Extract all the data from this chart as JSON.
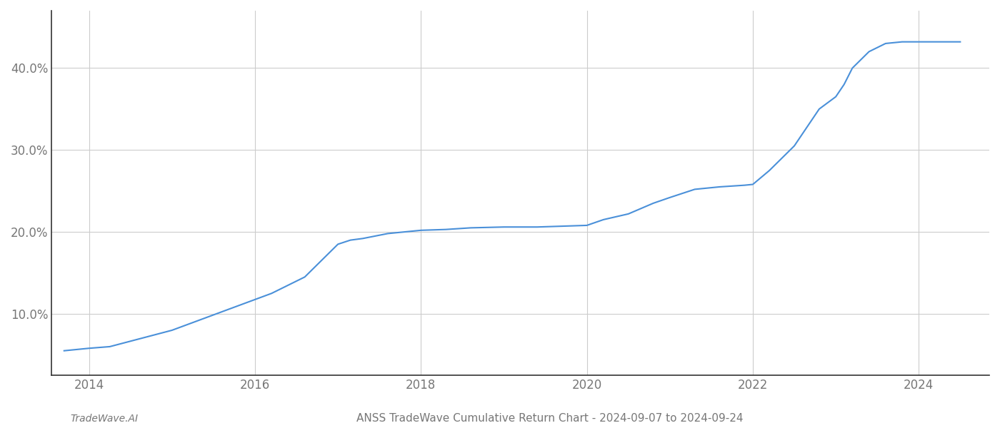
{
  "title": "ANSS TradeWave Cumulative Return Chart - 2024-09-07 to 2024-09-24",
  "watermark": "TradeWave.AI",
  "line_color": "#4a90d9",
  "background_color": "#ffffff",
  "grid_color": "#cccccc",
  "x_years": [
    2013.7,
    2014.0,
    2014.25,
    2014.7,
    2015.0,
    2015.4,
    2015.8,
    2016.2,
    2016.6,
    2016.9,
    2017.0,
    2017.15,
    2017.3,
    2017.6,
    2018.0,
    2018.3,
    2018.6,
    2019.0,
    2019.4,
    2019.7,
    2020.0,
    2020.2,
    2020.5,
    2020.8,
    2021.0,
    2021.15,
    2021.3,
    2021.6,
    2021.9,
    2022.0,
    2022.2,
    2022.5,
    2022.8,
    2023.0,
    2023.1,
    2023.2,
    2023.4,
    2023.6,
    2023.8,
    2024.0,
    2024.5
  ],
  "y_values": [
    5.5,
    5.8,
    6.0,
    7.2,
    8.0,
    9.5,
    11.0,
    12.5,
    14.5,
    17.5,
    18.5,
    19.0,
    19.2,
    19.8,
    20.2,
    20.3,
    20.5,
    20.6,
    20.6,
    20.7,
    20.8,
    21.5,
    22.2,
    23.5,
    24.2,
    24.7,
    25.2,
    25.5,
    25.7,
    25.8,
    27.5,
    30.5,
    35.0,
    36.5,
    38.0,
    40.0,
    42.0,
    43.0,
    43.2,
    43.2,
    43.2
  ],
  "yticks": [
    10.0,
    20.0,
    30.0,
    40.0
  ],
  "xticks": [
    2014,
    2016,
    2018,
    2020,
    2022,
    2024
  ],
  "xlim": [
    2013.55,
    2024.85
  ],
  "ylim": [
    2.5,
    47.0
  ],
  "tick_label_color": "#777777",
  "axis_color": "#333333",
  "label_fontsize": 12,
  "title_fontsize": 11,
  "watermark_fontsize": 10
}
